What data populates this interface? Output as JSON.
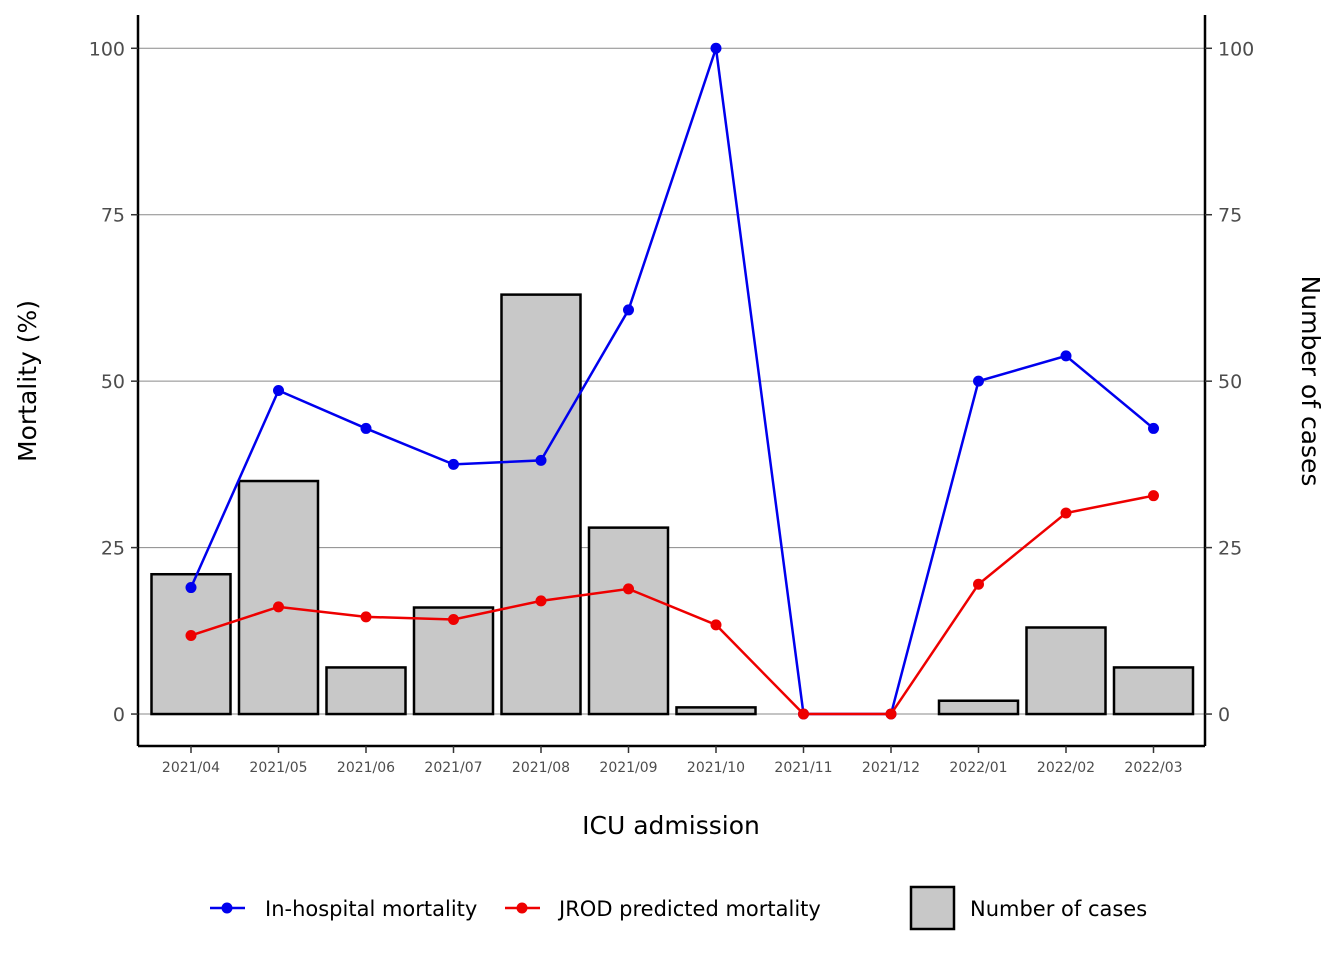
{
  "chart_data": {
    "type": "bar+line",
    "categories": [
      "2021/04",
      "2021/05",
      "2021/06",
      "2021/07",
      "2021/08",
      "2021/09",
      "2021/10",
      "2021/11",
      "2021/12",
      "2022/01",
      "2022/02",
      "2022/03"
    ],
    "bars": {
      "name": "Number of cases",
      "values": [
        21,
        35,
        7,
        16,
        63,
        28,
        1,
        0,
        0,
        2,
        13,
        7
      ],
      "color": "#c8c8c8",
      "axis": "right"
    },
    "series": [
      {
        "name": "In-hospital mortality",
        "values": [
          19.0,
          48.6,
          42.9,
          37.5,
          38.1,
          60.7,
          100.0,
          0.0,
          0.0,
          50.0,
          53.8,
          42.9
        ],
        "color": "#0000ee",
        "axis": "left"
      },
      {
        "name": "JROD predicted mortality",
        "values": [
          11.8,
          16.1,
          14.6,
          14.2,
          17.0,
          18.8,
          13.4,
          0.0,
          0.0,
          19.5,
          30.2,
          32.8
        ],
        "color": "#ee0000",
        "axis": "left"
      }
    ],
    "xlabel": "ICU admission",
    "ylabel": "Mortality (%)",
    "y2label": "Number of cases",
    "ylim": [
      -4.8,
      105
    ],
    "y2lim": [
      -4.8,
      105
    ],
    "yticks": [
      0,
      25,
      50,
      75,
      100
    ],
    "y2ticks": [
      0,
      25,
      50,
      75,
      100
    ],
    "grid": "horizontal major",
    "legend": "bottom"
  }
}
